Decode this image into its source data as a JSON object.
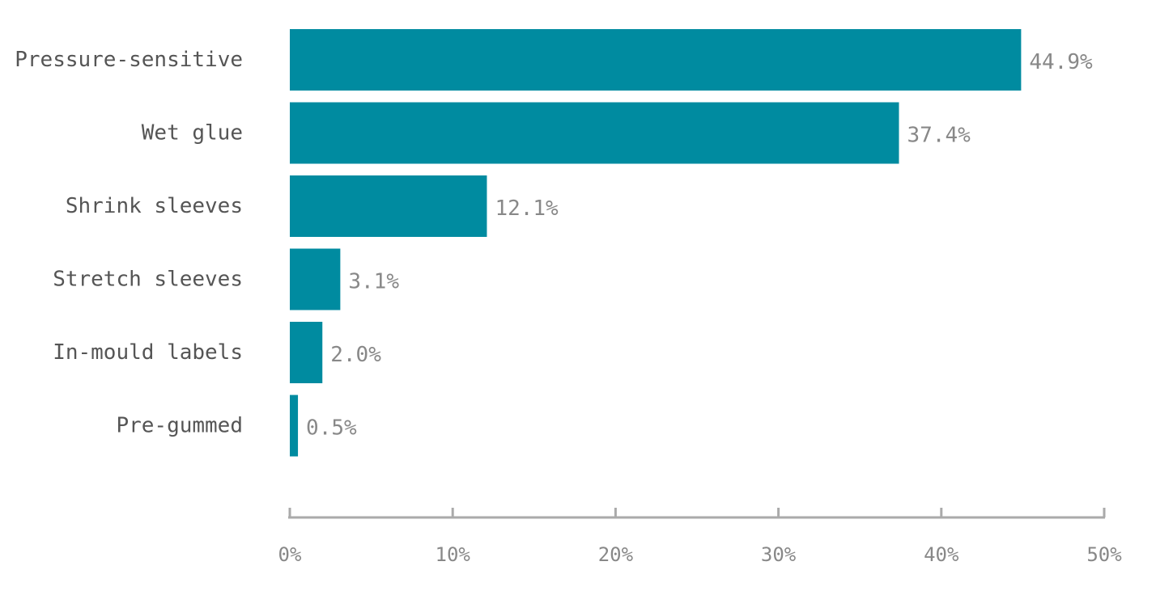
{
  "chart_data": {
    "type": "bar",
    "orientation": "horizontal",
    "categories": [
      "Pressure-sensitive",
      "Wet glue",
      "Shrink sleeves",
      "Stretch sleeves",
      "In-mould labels",
      "Pre-gummed"
    ],
    "values": [
      44.9,
      37.4,
      12.1,
      3.1,
      2.0,
      0.5
    ],
    "value_labels": [
      "44.9%",
      "37.4%",
      "12.1%",
      "3.1%",
      "2.0%",
      "0.5%"
    ],
    "xlim": [
      0,
      50
    ],
    "x_ticks": [
      0,
      10,
      20,
      30,
      40,
      50
    ],
    "x_tick_labels": [
      "0%",
      "10%",
      "20%",
      "30%",
      "40%",
      "50%"
    ],
    "title": "",
    "xlabel": "",
    "ylabel": "",
    "grid": false,
    "bar_color": "#008ba0",
    "axis_color": "#aaaaaa"
  }
}
